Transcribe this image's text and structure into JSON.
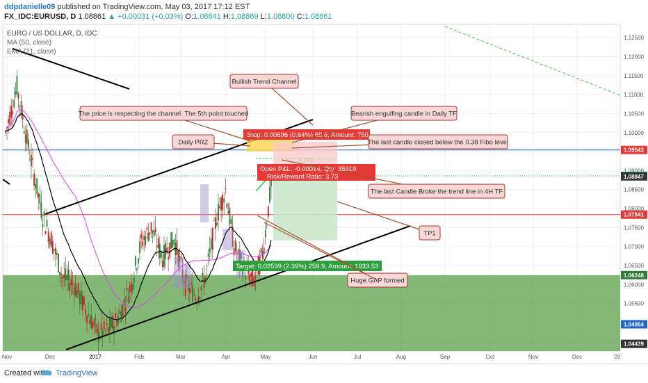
{
  "header": {
    "username": "ddpdanielle09",
    "published": "published on TradingView.com, May 03, 2017 17:12 EST",
    "symbol": "FX_IDC:EURUSD, D",
    "last": "1.08861",
    "change_arrow": "▲",
    "change": "+0.00031 (+0.03%)",
    "o_label": "O:",
    "o": "1.08841",
    "h_label": "H:",
    "h": "1.08869",
    "l_label": "L:",
    "l": "1.08800",
    "c_label": "C:",
    "c": "1.08861"
  },
  "legend": {
    "title": "EURO / US DOLLAR, D, IDC",
    "ma": "MA (50, close)",
    "ema": "EMA (21, close)"
  },
  "footer": {
    "created_with": "Created with",
    "brand": "TradingView"
  },
  "colors": {
    "up_candle": "#2e7d32",
    "down_candle": "#c62828",
    "ma": "#e040fb",
    "ema": "#000000",
    "zone": "#5aa04a",
    "target_box": "#c8e6c9",
    "stop_box": "#f8c8c8",
    "callout_bg": "#f8d7d7",
    "callout_border": "#a33"
  },
  "chart_data": {
    "type": "candlestick",
    "title": "EURO / US DOLLAR, D, IDC",
    "ylim": [
      1.0425,
      1.1285
    ],
    "x_ticks": [
      "Nov",
      "Dec",
      "2017",
      "Feb",
      "Mar",
      "Apr",
      "May",
      "Jun",
      "Jul",
      "Aug",
      "Sep",
      "Oct",
      "Nov",
      "Dec",
      "20"
    ],
    "y_ticks": [
      "1.12500",
      "1.12000",
      "1.11500",
      "1.11000",
      "1.10500",
      "1.10000",
      "1.09500",
      "1.09000",
      "1.08500",
      "1.08000",
      "1.07500",
      "1.07000",
      "1.06500",
      "1.06000",
      "1.05500",
      "1.05000",
      "1.04500"
    ],
    "price_labels": [
      {
        "text": "1.09543",
        "value": 1.09543,
        "color": "#e53935"
      },
      {
        "text": "1.08861",
        "value": 1.08861,
        "color": "#26a69a"
      },
      {
        "text": "1.08847",
        "value": 1.08847,
        "color": "#333333"
      },
      {
        "text": "1.07841",
        "value": 1.07841,
        "color": "#e53935"
      },
      {
        "text": "1.06248",
        "value": 1.06248,
        "color": "#2e7d32"
      },
      {
        "text": "1.04954",
        "value": 1.04954,
        "color": "#1e66c8"
      },
      {
        "text": "1.04439",
        "value": 1.04439,
        "color": "#333333"
      }
    ],
    "position": {
      "stop_label": "Stop: 0.00696 (0.64%) 69.6, Amount: 750",
      "open_pl_label": "Open P&L: -0.00014, Qty: 35919",
      "rr_label": "Risk/Reward Ratio: 3.73",
      "target_label": "Target: 0.02599 (2.39%) 259.9, Amount: 1933.53",
      "fibo_label": "0.382",
      "entry": 1.08847,
      "stop": 1.09543,
      "target": 1.06248
    },
    "annotations": [
      "Bullish Trend Channel",
      "The price is respecting the channel. The 5th point touched",
      "Bearish engulfing candle in Daily TF",
      "Daily PRZ",
      "The last candle closed below the 0.38 Fibo level",
      "The last Candle Broke the trend line in 4H TF",
      "TP1",
      "Huge GAP formed"
    ]
  }
}
